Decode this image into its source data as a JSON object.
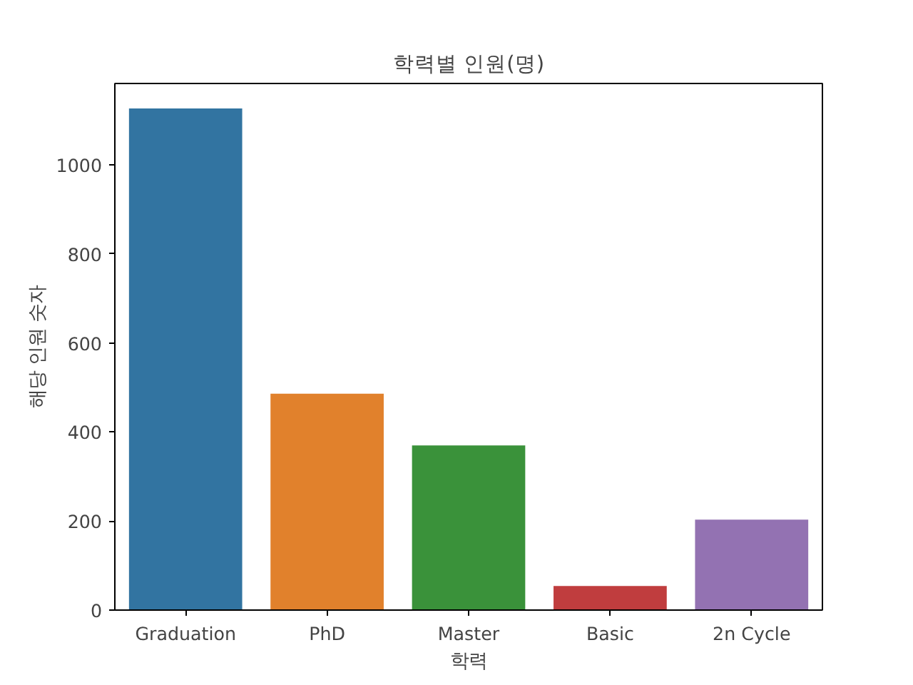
{
  "chart_data": {
    "type": "bar",
    "title": "학력별 인원(명)",
    "xlabel": "학력",
    "ylabel": "해당 인원 숫자",
    "categories": [
      "Graduation",
      "PhD",
      "Master",
      "Basic",
      "2n Cycle"
    ],
    "values": [
      1127,
      486,
      370,
      54,
      203
    ],
    "colors": [
      "#3274a1",
      "#e1812c",
      "#3a923a",
      "#c03d3e",
      "#9372b2"
    ],
    "ylim": [
      0,
      1183
    ],
    "yticks": [
      0,
      200,
      400,
      600,
      800,
      1000
    ],
    "grid": false
  }
}
